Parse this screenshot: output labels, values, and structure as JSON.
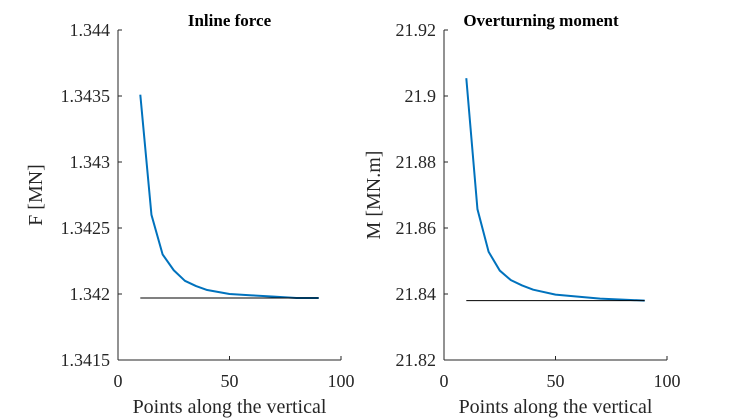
{
  "chart_data": [
    {
      "type": "line",
      "title": "Inline force",
      "xlabel": "Points along the vertical",
      "ylabel": "F [MN]",
      "xlim": [
        0,
        100
      ],
      "ylim": [
        1.3415,
        1.344
      ],
      "xticks": [
        "0",
        "50",
        "100"
      ],
      "yticks": [
        "1.3415",
        "1.342",
        "1.3425",
        "1.343",
        "1.3435",
        "1.344"
      ],
      "grid": false,
      "series": [
        {
          "color": "#0072BD",
          "x": [
            10,
            15,
            20,
            25,
            30,
            35,
            40,
            50,
            60,
            70,
            80,
            90
          ],
          "y": [
            1.34351,
            1.3426,
            1.3423,
            1.34218,
            1.3421,
            1.34206,
            1.34203,
            1.342,
            1.34199,
            1.34198,
            1.34197,
            1.34197
          ]
        },
        {
          "color": "#000000",
          "x": [
            10,
            90
          ],
          "y": [
            1.34197,
            1.34197
          ]
        }
      ]
    },
    {
      "type": "line",
      "title": "Overturning moment",
      "xlabel": "Points along the vertical",
      "ylabel": "M [MN.m]",
      "xlim": [
        0,
        100
      ],
      "ylim": [
        21.82,
        21.92
      ],
      "xticks": [
        "0",
        "50",
        "100"
      ],
      "yticks": [
        "21.82",
        "21.84",
        "21.86",
        "21.88",
        "21.9",
        "21.92"
      ],
      "grid": false,
      "series": [
        {
          "color": "#0072BD",
          "x": [
            10,
            15,
            20,
            25,
            30,
            35,
            40,
            50,
            60,
            70,
            80,
            90
          ],
          "y": [
            21.9054,
            21.8657,
            21.8528,
            21.8471,
            21.8442,
            21.8426,
            21.8413,
            21.8398,
            21.8392,
            21.8386,
            21.8383,
            21.838
          ]
        },
        {
          "color": "#000000",
          "x": [
            10,
            90
          ],
          "y": [
            21.838,
            21.838
          ]
        }
      ]
    }
  ]
}
